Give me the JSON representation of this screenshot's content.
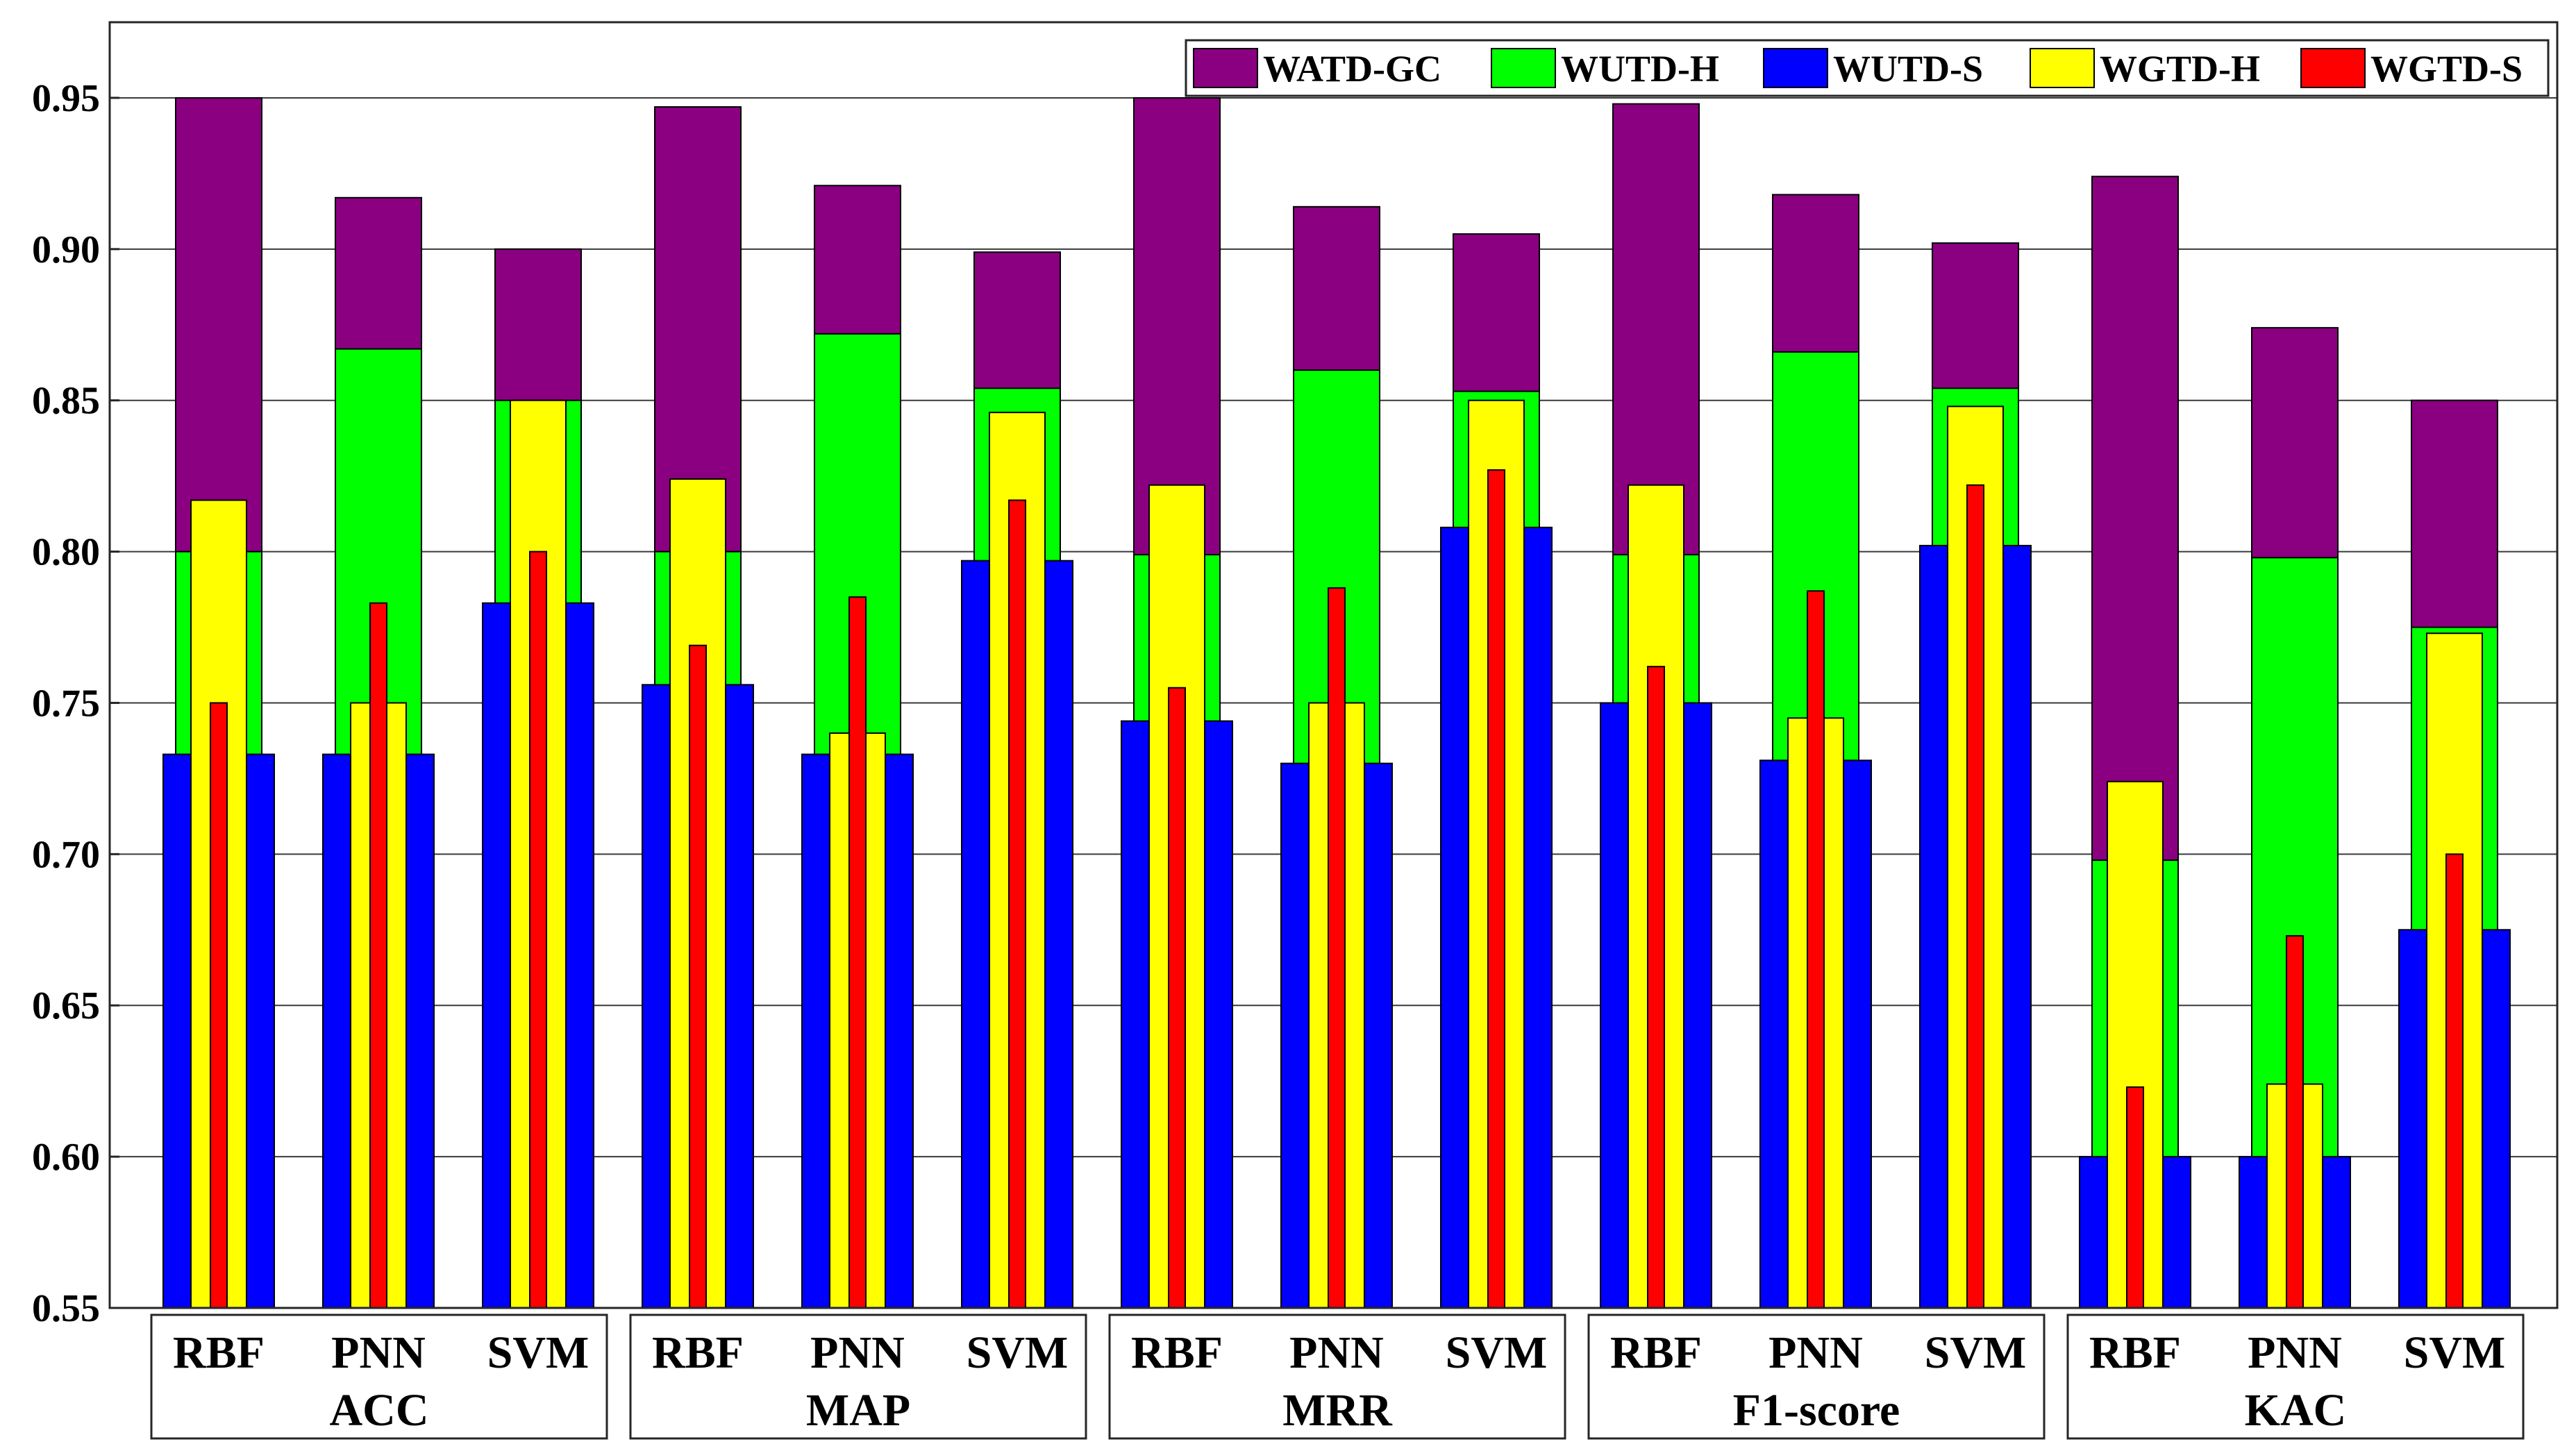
{
  "chart_data": {
    "type": "bar",
    "ylim": [
      0.55,
      0.975
    ],
    "yticks": [
      "0.55",
      "0.60",
      "0.65",
      "0.70",
      "0.75",
      "0.80",
      "0.85",
      "0.90",
      "0.95"
    ],
    "grid": true,
    "legend_position": "top-right",
    "groups": [
      {
        "label": "ACC",
        "classifiers": [
          "RBF",
          "PNN",
          "SVM"
        ]
      },
      {
        "label": "MAP",
        "classifiers": [
          "RBF",
          "PNN",
          "SVM"
        ]
      },
      {
        "label": "MRR",
        "classifiers": [
          "RBF",
          "PNN",
          "SVM"
        ]
      },
      {
        "label": "F1-score",
        "classifiers": [
          "RBF",
          "PNN",
          "SVM"
        ]
      },
      {
        "label": "KAC",
        "classifiers": [
          "RBF",
          "PNN",
          "SVM"
        ]
      }
    ],
    "series": [
      {
        "name": "WATD-GC",
        "color": "#8b0080",
        "values": [
          0.95,
          0.917,
          0.9,
          0.947,
          0.921,
          0.899,
          0.95,
          0.914,
          0.905,
          0.948,
          0.918,
          0.902,
          0.924,
          0.874,
          0.85
        ]
      },
      {
        "name": "WUTD-H",
        "color": "#00ff00",
        "values": [
          0.8,
          0.867,
          0.85,
          0.8,
          0.872,
          0.854,
          0.799,
          0.86,
          0.853,
          0.799,
          0.866,
          0.854,
          0.698,
          0.798,
          0.775
        ]
      },
      {
        "name": "WUTD-S",
        "color": "#0000ff",
        "values": [
          0.733,
          0.733,
          0.783,
          0.756,
          0.733,
          0.797,
          0.744,
          0.73,
          0.808,
          0.75,
          0.731,
          0.802,
          0.6,
          0.6,
          0.675
        ]
      },
      {
        "name": "WGTD-H",
        "color": "#ffff00",
        "values": [
          0.817,
          0.75,
          0.85,
          0.824,
          0.74,
          0.846,
          0.822,
          0.75,
          0.85,
          0.822,
          0.745,
          0.848,
          0.724,
          0.624,
          0.773
        ]
      },
      {
        "name": "WGTD-S",
        "color": "#ff0000",
        "values": [
          0.75,
          0.783,
          0.8,
          0.769,
          0.785,
          0.817,
          0.755,
          0.788,
          0.827,
          0.762,
          0.787,
          0.822,
          0.623,
          0.673,
          0.7
        ]
      }
    ]
  }
}
